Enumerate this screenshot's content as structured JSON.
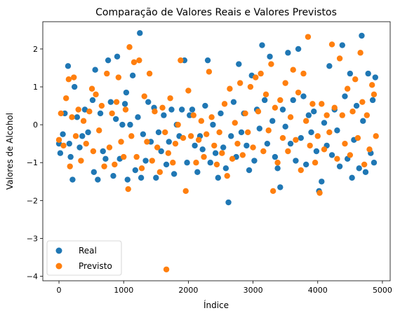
{
  "chart_data": {
    "type": "scatter",
    "title": "Comparação de Valores Reais e Valores Previstos",
    "xlabel": "Índice",
    "ylabel": "Valores de Alcohol",
    "xlim": [
      -250,
      5120
    ],
    "ylim": [
      -4.12,
      2.72
    ],
    "x_ticks": [
      0,
      1000,
      2000,
      3000,
      4000,
      5000
    ],
    "x_tick_labels": [
      "0",
      "1000",
      "2000",
      "3000",
      "4000",
      "5000"
    ],
    "y_ticks": [
      -4,
      -3,
      -2,
      -1,
      0,
      1,
      2
    ],
    "y_tick_labels": [
      "−4",
      "−3",
      "−2",
      "−1",
      "0",
      "1",
      "2"
    ],
    "grid": false,
    "legend_position": "bottom-left",
    "series": [
      {
        "name": "Real",
        "color": "#1f77b4",
        "points": [
          [
            0,
            -0.5
          ],
          [
            20,
            -0.75
          ],
          [
            60,
            -0.25
          ],
          [
            90,
            0.3
          ],
          [
            140,
            1.55
          ],
          [
            160,
            -0.5
          ],
          [
            180,
            -0.85
          ],
          [
            210,
            -1.45
          ],
          [
            240,
            1.0
          ],
          [
            280,
            0.2
          ],
          [
            320,
            -0.6
          ],
          [
            360,
            -0.3
          ],
          [
            400,
            0.4
          ],
          [
            450,
            -0.2
          ],
          [
            520,
            0.65
          ],
          [
            540,
            -1.25
          ],
          [
            560,
            1.45
          ],
          [
            600,
            -1.45
          ],
          [
            640,
            0.3
          ],
          [
            680,
            -0.7
          ],
          [
            720,
            -0.9
          ],
          [
            760,
            1.7
          ],
          [
            800,
            0.6
          ],
          [
            840,
            -1.35
          ],
          [
            880,
            0.15
          ],
          [
            900,
            1.8
          ],
          [
            940,
            -0.9
          ],
          [
            980,
            0.0
          ],
          [
            1020,
            0.55
          ],
          [
            1040,
            0.85
          ],
          [
            1060,
            -1.45
          ],
          [
            1100,
            0.0
          ],
          [
            1140,
            1.3
          ],
          [
            1180,
            -1.2
          ],
          [
            1220,
            0.2
          ],
          [
            1250,
            2.42
          ],
          [
            1270,
            -1.4
          ],
          [
            1300,
            -0.25
          ],
          [
            1340,
            -0.95
          ],
          [
            1380,
            0.6
          ],
          [
            1420,
            -0.45
          ],
          [
            1470,
            0.45
          ],
          [
            1500,
            -1.4
          ],
          [
            1540,
            -0.2
          ],
          [
            1580,
            -0.7
          ],
          [
            1620,
            0.25
          ],
          [
            1660,
            -1.05
          ],
          [
            1700,
            -0.45
          ],
          [
            1740,
            0.4
          ],
          [
            1780,
            -1.3
          ],
          [
            1820,
            0.0
          ],
          [
            1860,
            -0.3
          ],
          [
            1900,
            0.4
          ],
          [
            1940,
            1.7
          ],
          [
            1980,
            -1.0
          ],
          [
            2020,
            0.25
          ],
          [
            2060,
            0.4
          ],
          [
            2100,
            -0.55
          ],
          [
            2140,
            -1.25
          ],
          [
            2180,
            -0.3
          ],
          [
            2220,
            -0.65
          ],
          [
            2260,
            0.5
          ],
          [
            2300,
            1.7
          ],
          [
            2340,
            -1.0
          ],
          [
            2380,
            0.0
          ],
          [
            2420,
            -0.75
          ],
          [
            2460,
            -1.4
          ],
          [
            2500,
            0.3
          ],
          [
            2540,
            -0.6
          ],
          [
            2580,
            -1.15
          ],
          [
            2620,
            -2.05
          ],
          [
            2660,
            -0.3
          ],
          [
            2700,
            0.6
          ],
          [
            2740,
            -0.85
          ],
          [
            2780,
            1.6
          ],
          [
            2820,
            -0.2
          ],
          [
            2860,
            0.3
          ],
          [
            2900,
            -0.55
          ],
          [
            2940,
            -1.2
          ],
          [
            2980,
            1.3
          ],
          [
            3020,
            -0.95
          ],
          [
            3060,
            0.4
          ],
          [
            3100,
            -0.1
          ],
          [
            3140,
            2.1
          ],
          [
            3180,
            0.65
          ],
          [
            3220,
            -0.5
          ],
          [
            3260,
            1.8
          ],
          [
            3300,
            0.1
          ],
          [
            3340,
            -0.85
          ],
          [
            3380,
            -1.15
          ],
          [
            3420,
            -1.65
          ],
          [
            3460,
            0.4
          ],
          [
            3500,
            -0.05
          ],
          [
            3540,
            1.9
          ],
          [
            3580,
            -0.5
          ],
          [
            3620,
            0.65
          ],
          [
            3660,
            -0.95
          ],
          [
            3700,
            2.0
          ],
          [
            3740,
            -0.35
          ],
          [
            3780,
            0.75
          ],
          [
            3820,
            -1.05
          ],
          [
            3860,
            0.25
          ],
          [
            3900,
            -0.2
          ],
          [
            3940,
            0.35
          ],
          [
            3980,
            -0.7
          ],
          [
            4020,
            -1.75
          ],
          [
            4060,
            -1.5
          ],
          [
            4100,
            0.05
          ],
          [
            4140,
            -0.55
          ],
          [
            4180,
            1.55
          ],
          [
            4220,
            -0.8
          ],
          [
            4260,
            0.4
          ],
          [
            4300,
            -0.15
          ],
          [
            4340,
            -1.1
          ],
          [
            4380,
            2.1
          ],
          [
            4420,
            0.75
          ],
          [
            4460,
            -0.9
          ],
          [
            4500,
            1.35
          ],
          [
            4530,
            -1.4
          ],
          [
            4560,
            -0.4
          ],
          [
            4600,
            0.5
          ],
          [
            4640,
            -1.15
          ],
          [
            4680,
            2.35
          ],
          [
            4700,
            0.1
          ],
          [
            4740,
            -1.25
          ],
          [
            4780,
            1.35
          ],
          [
            4820,
            -0.75
          ],
          [
            4850,
            0.65
          ],
          [
            4870,
            -1.0
          ],
          [
            4890,
            1.25
          ]
        ]
      },
      {
        "name": "Previsto",
        "color": "#ff7f0e",
        "points": [
          [
            0,
            -0.4
          ],
          [
            30,
            0.3
          ],
          [
            70,
            -0.55
          ],
          [
            110,
            0.7
          ],
          [
            150,
            1.2
          ],
          [
            170,
            -1.1
          ],
          [
            200,
            0.2
          ],
          [
            230,
            1.25
          ],
          [
            260,
            -0.3
          ],
          [
            300,
            0.4
          ],
          [
            340,
            -0.95
          ],
          [
            380,
            0.1
          ],
          [
            420,
            -0.5
          ],
          [
            470,
            0.35
          ],
          [
            510,
            0.95
          ],
          [
            530,
            -0.7
          ],
          [
            570,
            0.8
          ],
          [
            620,
            -0.15
          ],
          [
            660,
            0.5
          ],
          [
            700,
            -1.1
          ],
          [
            740,
            1.35
          ],
          [
            780,
            -0.6
          ],
          [
            820,
            0.3
          ],
          [
            860,
            -1.05
          ],
          [
            890,
            0.6
          ],
          [
            920,
            1.25
          ],
          [
            960,
            -0.45
          ],
          [
            1000,
            -0.85
          ],
          [
            1030,
            0.4
          ],
          [
            1070,
            -1.7
          ],
          [
            1090,
            2.05
          ],
          [
            1120,
            -0.3
          ],
          [
            1160,
            1.65
          ],
          [
            1200,
            -0.85
          ],
          [
            1240,
            1.7
          ],
          [
            1280,
            -1.15
          ],
          [
            1320,
            0.75
          ],
          [
            1360,
            -0.45
          ],
          [
            1400,
            1.35
          ],
          [
            1440,
            -0.95
          ],
          [
            1480,
            0.35
          ],
          [
            1520,
            -0.6
          ],
          [
            1560,
            -1.25
          ],
          [
            1600,
            0.45
          ],
          [
            1640,
            -0.2
          ],
          [
            1660,
            -3.82
          ],
          [
            1690,
            -0.75
          ],
          [
            1720,
            0.7
          ],
          [
            1760,
            -1.0
          ],
          [
            1800,
            -0.5
          ],
          [
            1840,
            0.0
          ],
          [
            1880,
            1.7
          ],
          [
            1920,
            -0.35
          ],
          [
            1960,
            -1.75
          ],
          [
            2000,
            0.9
          ],
          [
            2040,
            -0.3
          ],
          [
            2080,
            0.25
          ],
          [
            2120,
            -1.0
          ],
          [
            2160,
            -0.4
          ],
          [
            2200,
            0.1
          ],
          [
            2240,
            -0.85
          ],
          [
            2280,
            -0.25
          ],
          [
            2320,
            1.4
          ],
          [
            2360,
            0.2
          ],
          [
            2400,
            -0.55
          ],
          [
            2440,
            -1.05
          ],
          [
            2480,
            -0.2
          ],
          [
            2520,
            -0.75
          ],
          [
            2560,
            0.55
          ],
          [
            2600,
            -1.35
          ],
          [
            2640,
            0.95
          ],
          [
            2680,
            -0.9
          ],
          [
            2720,
            0.05
          ],
          [
            2760,
            -0.5
          ],
          [
            2800,
            1.1
          ],
          [
            2840,
            -0.8
          ],
          [
            2880,
            0.3
          ],
          [
            2920,
            -0.2
          ],
          [
            2960,
            1.0
          ],
          [
            3000,
            -0.6
          ],
          [
            3040,
            1.25
          ],
          [
            3080,
            0.35
          ],
          [
            3120,
            1.35
          ],
          [
            3160,
            -0.7
          ],
          [
            3200,
            0.8
          ],
          [
            3240,
            -0.15
          ],
          [
            3280,
            1.6
          ],
          [
            3310,
            -1.75
          ],
          [
            3340,
            0.45
          ],
          [
            3380,
            -1.0
          ],
          [
            3420,
            0.65
          ],
          [
            3460,
            -0.35
          ],
          [
            3500,
            1.1
          ],
          [
            3540,
            -0.7
          ],
          [
            3580,
            0.2
          ],
          [
            3620,
            1.45
          ],
          [
            3660,
            -0.4
          ],
          [
            3700,
            0.85
          ],
          [
            3740,
            -1.2
          ],
          [
            3780,
            1.35
          ],
          [
            3820,
            0.1
          ],
          [
            3850,
            2.32
          ],
          [
            3880,
            -0.55
          ],
          [
            3920,
            0.55
          ],
          [
            3960,
            -1.0
          ],
          [
            4000,
            -0.3
          ],
          [
            4030,
            -1.8
          ],
          [
            4060,
            0.55
          ],
          [
            4100,
            -0.65
          ],
          [
            4140,
            0.25
          ],
          [
            4180,
            -0.2
          ],
          [
            4220,
            2.12
          ],
          [
            4260,
            0.45
          ],
          [
            4300,
            -0.9
          ],
          [
            4340,
            1.75
          ],
          [
            4380,
            0.25
          ],
          [
            4420,
            -0.5
          ],
          [
            4460,
            0.95
          ],
          [
            4500,
            -0.8
          ],
          [
            4540,
            0.35
          ],
          [
            4580,
            1.2
          ],
          [
            4620,
            -0.35
          ],
          [
            4660,
            1.9
          ],
          [
            4690,
            0.6
          ],
          [
            4720,
            -1.05
          ],
          [
            4760,
            0.25
          ],
          [
            4800,
            -0.65
          ],
          [
            4840,
            1.05
          ],
          [
            4870,
            0.8
          ],
          [
            4900,
            -0.3
          ]
        ]
      }
    ]
  }
}
